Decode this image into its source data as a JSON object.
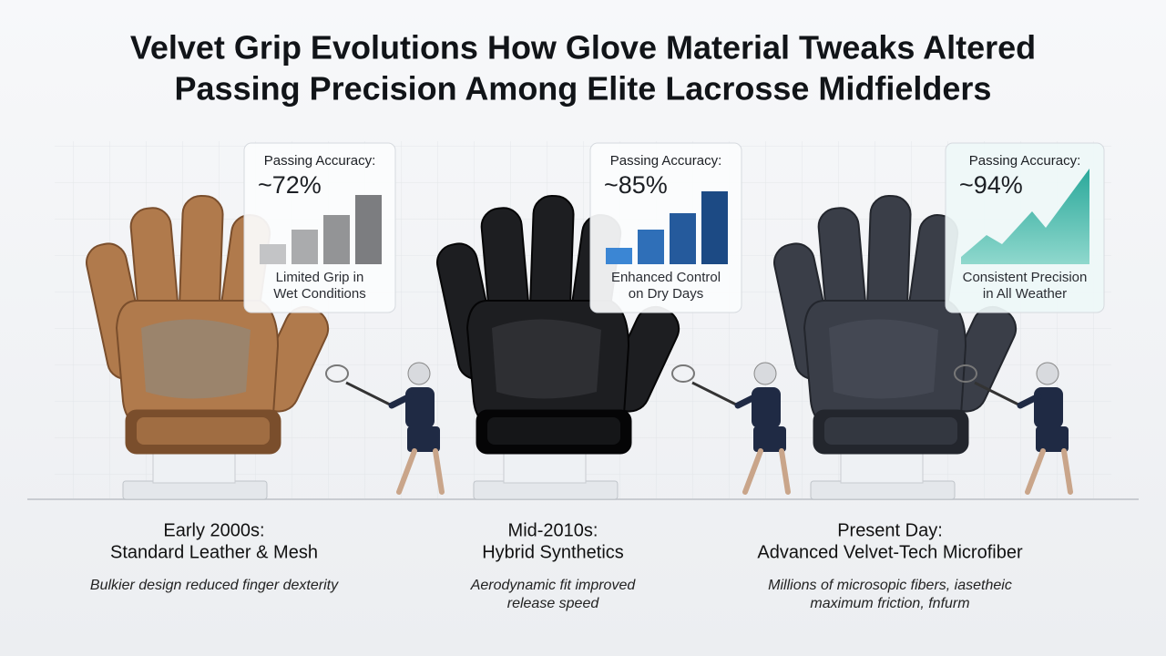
{
  "title": [
    "Velvet Grip Evolutions How Glove Material Tweaks Altered",
    "Passing Precision Among Elite Lacrosse Midfielders"
  ],
  "panels": [
    {
      "card": {
        "label": "Passing Accuracy:",
        "value": "~72%",
        "note": [
          "Limited Grip in",
          "Wet Conditions"
        ]
      },
      "era": "Early 2000s:",
      "material": "Standard Leather & Mesh",
      "description": [
        "Bulkier design reduced finger dexterity"
      ]
    },
    {
      "card": {
        "label": "Passing Accuracy:",
        "value": "~85%",
        "note": [
          "Enhanced Control",
          "on Dry Days"
        ]
      },
      "era": "Mid-2010s:",
      "material": "Hybrid Synthetics",
      "description": [
        "Aerodynamic fit improved",
        "release speed"
      ]
    },
    {
      "card": {
        "label": "Passing Accuracy:",
        "value": "~94%",
        "note": [
          "Consistent Precision",
          "in All Weather"
        ]
      },
      "era": "Present Day:",
      "material": "Advanced Velvet-Tech Microfiber",
      "description": [
        "Millions of microsopic fibers, iasetheic",
        "maximum friction, fnfurm"
      ]
    }
  ]
}
